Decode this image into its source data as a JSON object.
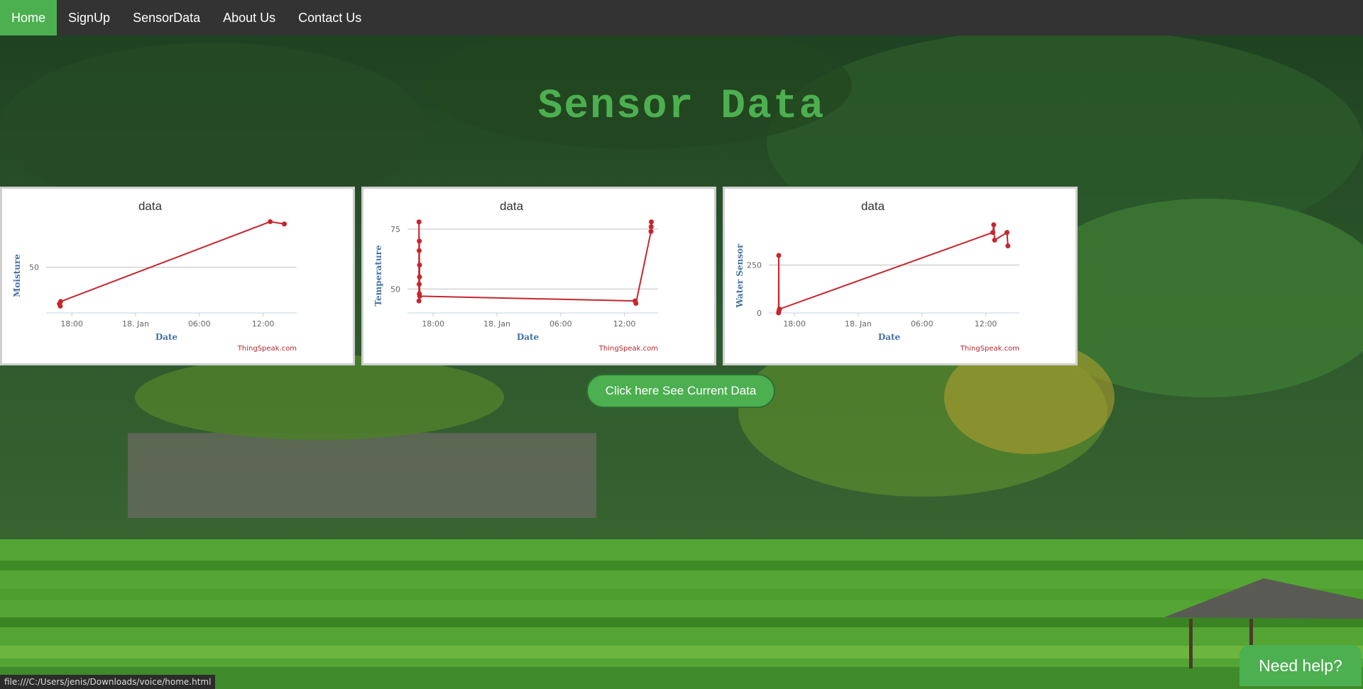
{
  "nav": {
    "items": [
      {
        "label": "Home",
        "active": true
      },
      {
        "label": "SignUp",
        "active": false
      },
      {
        "label": "SensorData",
        "active": false
      },
      {
        "label": "About Us",
        "active": false
      },
      {
        "label": "Contact Us",
        "active": false
      }
    ]
  },
  "page_title": "Sensor Data",
  "cta_label": "Click here See Current Data",
  "help_label": "Need help?",
  "status_url": "file:///C:/Users/jenis/Downloads/voice/home.html",
  "colors": {
    "accent": "#4CAF50",
    "nav_bg": "#333333",
    "series": "#c6262e",
    "axis_title": "#4572a7"
  },
  "chart_data": [
    {
      "type": "line",
      "title": "data",
      "xlabel": "Date",
      "ylabel": "Moisture",
      "credit": "ThingSpeak.com",
      "x_ticks": [
        "18:00",
        "18. Jan",
        "06:00",
        "12:00"
      ],
      "y_ticks": [
        50
      ],
      "ylim": [
        30,
        72
      ],
      "x": [
        "2019-01-17T16:50",
        "2019-01-17T16:55",
        "2019-01-17T16:57",
        "2019-01-18T12:40",
        "2019-01-18T14:00"
      ],
      "series": [
        {
          "values": [
            34,
            33,
            35,
            70,
            69
          ]
        }
      ]
    },
    {
      "type": "line",
      "title": "data",
      "xlabel": "Date",
      "ylabel": "Temperature",
      "credit": "ThingSpeak.com",
      "x_ticks": [
        "18:00",
        "18. Jan",
        "06:00",
        "12:00"
      ],
      "y_ticks": [
        50,
        75
      ],
      "ylim": [
        40,
        80
      ],
      "x": [
        "2019-01-17T16:40",
        "2019-01-17T16:40",
        "2019-01-17T16:41",
        "2019-01-17T16:41",
        "2019-01-17T16:42",
        "2019-01-17T16:42",
        "2019-01-17T16:43",
        "2019-01-17T16:43",
        "2019-01-17T16:44",
        "2019-01-18T13:00",
        "2019-01-18T13:05",
        "2019-01-18T14:30",
        "2019-01-18T14:31",
        "2019-01-18T14:32"
      ],
      "series": [
        {
          "values": [
            45,
            78,
            66,
            52,
            70,
            48,
            60,
            55,
            47,
            45,
            44,
            74,
            76,
            78
          ]
        }
      ]
    },
    {
      "type": "line",
      "title": "data",
      "xlabel": "Date",
      "ylabel": "Water Sensor",
      "credit": "ThingSpeak.com",
      "x_ticks": [
        "18:00",
        "18. Jan",
        "06:00",
        "12:00"
      ],
      "y_ticks": [
        0,
        250
      ],
      "ylim": [
        0,
        500
      ],
      "x": [
        "2019-01-17T16:30",
        "2019-01-17T16:31",
        "2019-01-17T16:32",
        "2019-01-17T16:35",
        "2019-01-18T12:40",
        "2019-01-18T12:45",
        "2019-01-18T12:50",
        "2019-01-18T14:00",
        "2019-01-18T14:05"
      ],
      "series": [
        {
          "values": [
            0,
            300,
            10,
            20,
            420,
            460,
            380,
            420,
            350
          ]
        }
      ]
    }
  ]
}
